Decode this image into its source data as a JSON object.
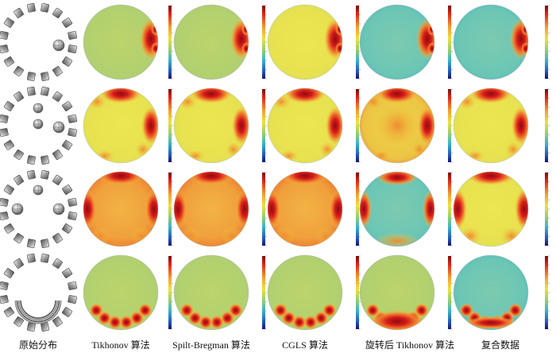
{
  "figure": {
    "columns": [
      {
        "label": "原始分布"
      },
      {
        "label": "Tikhonov 算法"
      },
      {
        "label": "Spilt-Bregman 算法"
      },
      {
        "label": "CGLS 算法"
      },
      {
        "label": "旋转后 Tikhonov 算法"
      },
      {
        "label": "复合数据"
      }
    ],
    "colors": {
      "background_green": "#b9d36a",
      "background_yellow": "#e6e64a",
      "background_orange": "#f2a640",
      "background_teal": "#6cc4b4",
      "hot": "#c8181c",
      "deep_red": "#8e0c10",
      "colorbar": [
        "#8b1010",
        "#e83020",
        "#f49a30",
        "#f0e040",
        "#9ad06a",
        "#3cb8c8",
        "#2860c0",
        "#1a1a80"
      ]
    }
  }
}
